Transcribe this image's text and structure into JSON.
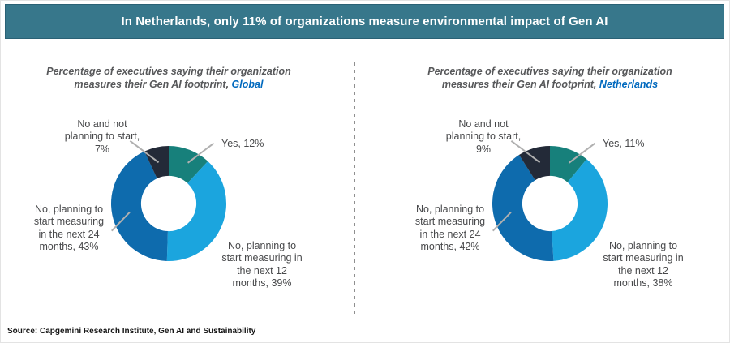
{
  "header": {
    "title": "In Netherlands, only 11% of organizations measure environmental impact of Gen AI",
    "background_color": "#37778B",
    "text_color": "#FFFFFF"
  },
  "source": "Source: Capgemini Research Institute, Gen AI and Sustainability",
  "accent_region_color": "#0069BE",
  "chart_data": [
    {
      "type": "donut",
      "title": "Percentage of executives saying their organization measures their Gen AI footprint, Global",
      "title_prefix": "Percentage of executives saying their organization measures their Gen AI footprint, ",
      "region": "Global",
      "categories": [
        "Yes",
        "No, planning to start measuring in the next 12 months",
        "No, planning to start measuring in the next 24 months",
        "No and not planning to start"
      ],
      "values": [
        12,
        39,
        43,
        7
      ],
      "labels": [
        "Yes, 12%",
        "No, planning to start measuring in the next 12 months, 39%",
        "No, planning to start measuring in the next 24 months, 43%",
        "No and not planning to start, 7%"
      ],
      "segment_names": [
        "yes",
        "no-next-12-months",
        "no-next-24-months",
        "no-not-planning"
      ],
      "colors": [
        "#17807B",
        "#1BA5DE",
        "#0E6BAD",
        "#232A38"
      ],
      "start_angle_deg": 0,
      "direction": "clockwise",
      "donut_hole_ratio": 0.48,
      "legend": "off"
    },
    {
      "type": "donut",
      "title": "Percentage of executives saying their organization measures their Gen AI footprint, Netherlands",
      "title_prefix": "Percentage of executives saying their organization measures their Gen AI footprint, ",
      "region": "Netherlands",
      "categories": [
        "Yes",
        "No, planning to start measuring in the next 12 months",
        "No, planning to start measuring in the next 24 months",
        "No and not planning to start"
      ],
      "values": [
        11,
        38,
        42,
        9
      ],
      "labels": [
        "Yes, 11%",
        "No, planning to start measuring in the next 12 months, 38%",
        "No, planning to start measuring in the next 24 months, 42%",
        "No and not planning to start, 9%"
      ],
      "segment_names": [
        "yes",
        "no-next-12-months",
        "no-next-24-months",
        "no-not-planning"
      ],
      "colors": [
        "#17807B",
        "#1BA5DE",
        "#0E6BAD",
        "#232A38"
      ],
      "start_angle_deg": 0,
      "direction": "clockwise",
      "donut_hole_ratio": 0.48,
      "legend": "off"
    }
  ]
}
